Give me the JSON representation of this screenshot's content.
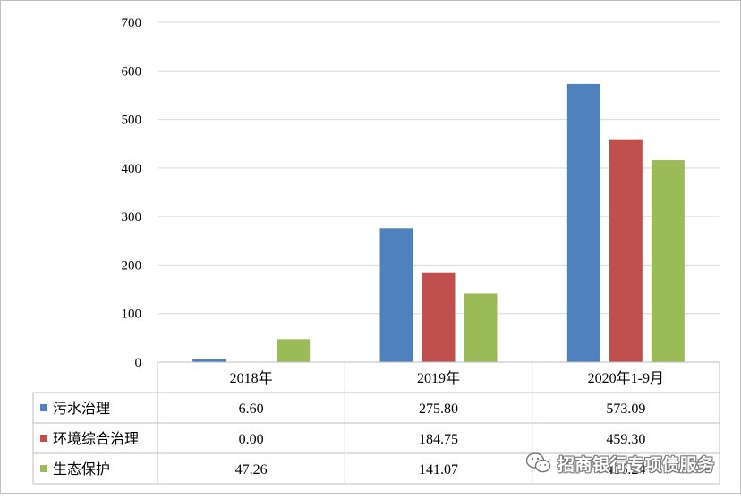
{
  "chart_data": {
    "type": "bar",
    "title": "",
    "xlabel": "",
    "ylabel": "",
    "ylim": [
      0,
      700
    ],
    "yticks": [
      0,
      100,
      200,
      300,
      400,
      500,
      600,
      700
    ],
    "grid": true,
    "legend_placement": "data-table-left",
    "categories": [
      "2018年",
      "2019年",
      "2020年1-9月"
    ],
    "series": [
      {
        "name": "污水治理",
        "color": "#4f81bd",
        "values": [
          6.6,
          275.8,
          573.09
        ],
        "labels": [
          "6.60",
          "275.80",
          "573.09"
        ]
      },
      {
        "name": "环境综合治理",
        "color": "#c0504d",
        "values": [
          0.0,
          184.75,
          459.3
        ],
        "labels": [
          "0.00",
          "184.75",
          "459.30"
        ]
      },
      {
        "name": "生态保护",
        "color": "#9bbb59",
        "values": [
          47.26,
          141.07,
          416.24
        ],
        "labels": [
          "47.26",
          "141.07",
          "416.24"
        ]
      }
    ]
  },
  "watermark": {
    "text": "招商银行专项债服务",
    "icon": "wechat-icon"
  }
}
